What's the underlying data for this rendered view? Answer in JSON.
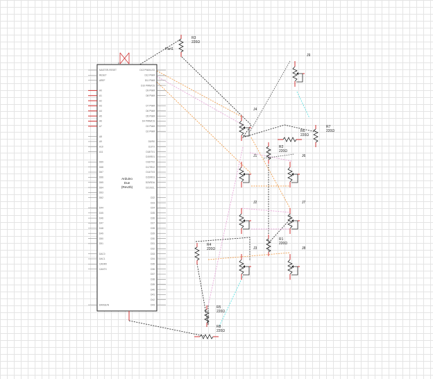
{
  "schematic": {
    "arduino": {
      "name": "Arduino",
      "model": "Due",
      "revision": "(Rev2b)",
      "label_top_left": "A",
      "left_pins": [
        "MASTER-RESET",
        "RESET",
        "AREF",
        "",
        "A0",
        "A1",
        "A2",
        "A3",
        "A4",
        "A5",
        "A6",
        "A7",
        "",
        "A8",
        "A9",
        "A10",
        "A11",
        "",
        "D69",
        "D68",
        "D67",
        "D66",
        "D65",
        "D64",
        "D63",
        "D62",
        "",
        "D44",
        "D45",
        "D46",
        "D47",
        "D48",
        "D49",
        "D50",
        "D51",
        "",
        "DAC0",
        "DAC1",
        "CANRX",
        "CANTX",
        "",
        "",
        "",
        "",
        "",
        "",
        "ERASE/N"
      ],
      "right_pins": [
        "D13 PWM/LED",
        "D12 PWM",
        "D11 PWM",
        "D10 PWM/CS",
        "D9 PWM",
        "D8 PWM",
        "",
        "D7 PWM",
        "D6 PWM",
        "D5 PWM",
        "D4 PWM/CS",
        "D3 PWM",
        "D2 PWM",
        "",
        "D0/RX",
        "D1/TX",
        "D18/TX1",
        "D19/RX1",
        "D16/TX2",
        "D17/RX2",
        "D14/TX3",
        "D15/RX3",
        "D20/SDA",
        "D21/SCL",
        "",
        "D22",
        "D23",
        "D24",
        "D25",
        "D26",
        "D27",
        "D28",
        "D29",
        "D30",
        "D31",
        "D32",
        "D33",
        "D34",
        "D35",
        "D36",
        "D37",
        "D38",
        "D39",
        "D40",
        "D41",
        "D42",
        "D43"
      ]
    },
    "resistors": [
      {
        "id": "R3",
        "value": "220Ω"
      },
      {
        "id": "R6",
        "value": "220Ω"
      },
      {
        "id": "R7",
        "value": "220Ω"
      },
      {
        "id": "R2",
        "value": "220Ω"
      },
      {
        "id": "R1",
        "value": "220Ω"
      },
      {
        "id": "R4",
        "value": "220Ω"
      },
      {
        "id": "R5",
        "value": "220Ω"
      },
      {
        "id": "R8",
        "value": "220Ω"
      }
    ],
    "potentiometers": [
      "J9",
      "J4",
      "J1",
      "J6",
      "J2",
      "J7",
      "J3",
      "J8"
    ],
    "part_label": "Part1",
    "colors": {
      "wire_black": "#333333",
      "wire_orange": "#f0a050",
      "wire_pink": "#e6a6d8",
      "wire_cyan": "#5ce0e0",
      "pin_red": "#d03030",
      "grid": "#e4e4e4"
    }
  }
}
